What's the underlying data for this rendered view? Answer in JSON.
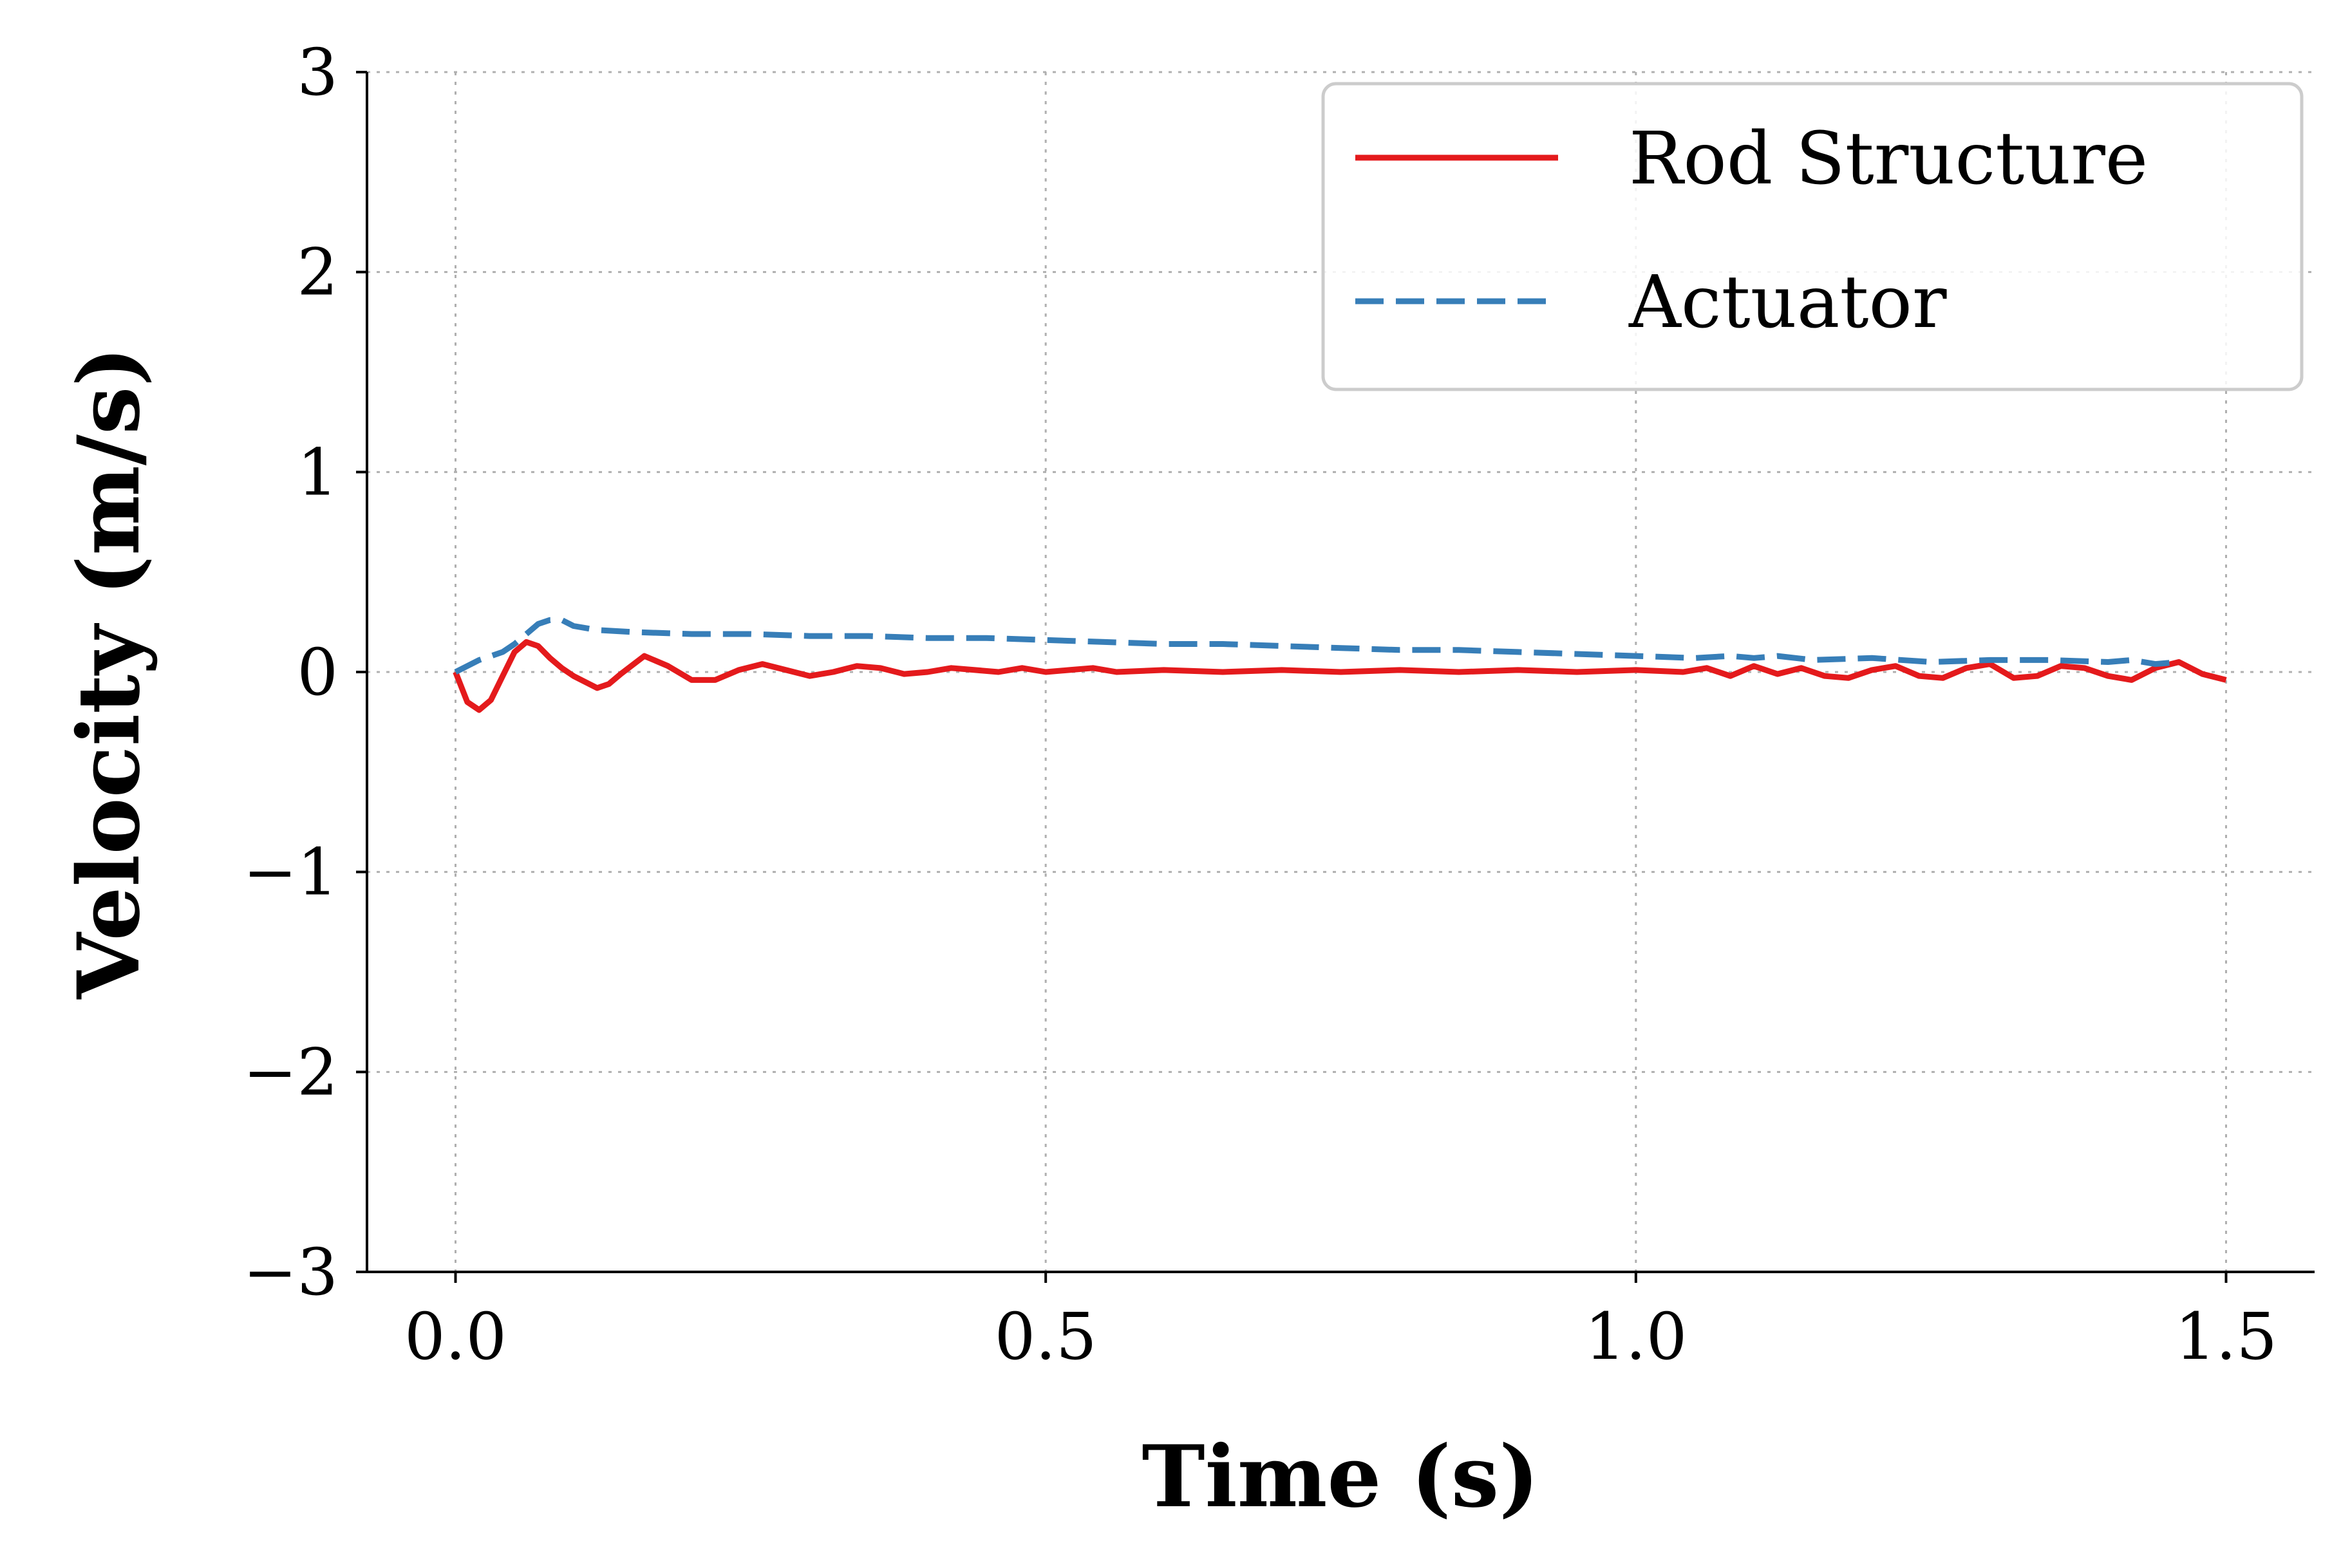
{
  "chart_data": {
    "type": "line",
    "xlabel": "Time (s)",
    "ylabel": "Velocity (m/s)",
    "xlim": [
      -0.075,
      1.575
    ],
    "ylim": [
      -3,
      3
    ],
    "xticks": [
      0.0,
      0.5,
      1.0,
      1.5
    ],
    "xtick_labels": [
      "0.0",
      "0.5",
      "1.0",
      "1.5"
    ],
    "yticks": [
      -3,
      -2,
      -1,
      0,
      1,
      2,
      3
    ],
    "ytick_labels": [
      "−3",
      "−2",
      "−1",
      "0",
      "1",
      "2",
      "3"
    ],
    "grid": true,
    "legend_position": "top-right",
    "series": [
      {
        "name": "Rod Structure",
        "color": "#e41a1c",
        "dash": "solid",
        "x": [
          0.0,
          0.01,
          0.02,
          0.03,
          0.04,
          0.05,
          0.06,
          0.07,
          0.08,
          0.09,
          0.1,
          0.12,
          0.13,
          0.14,
          0.16,
          0.18,
          0.2,
          0.22,
          0.24,
          0.26,
          0.28,
          0.3,
          0.32,
          0.34,
          0.36,
          0.38,
          0.4,
          0.42,
          0.44,
          0.46,
          0.48,
          0.5,
          0.52,
          0.54,
          0.56,
          0.6,
          0.65,
          0.7,
          0.75,
          0.8,
          0.85,
          0.9,
          0.95,
          1.0,
          1.04,
          1.06,
          1.08,
          1.1,
          1.12,
          1.14,
          1.16,
          1.18,
          1.2,
          1.22,
          1.24,
          1.26,
          1.28,
          1.3,
          1.32,
          1.34,
          1.36,
          1.38,
          1.4,
          1.42,
          1.44,
          1.46,
          1.48,
          1.5
        ],
        "y": [
          0.0,
          -0.15,
          -0.19,
          -0.14,
          -0.02,
          0.1,
          0.15,
          0.13,
          0.07,
          0.02,
          -0.02,
          -0.08,
          -0.06,
          -0.01,
          0.08,
          0.03,
          -0.04,
          -0.04,
          0.01,
          0.04,
          0.01,
          -0.02,
          0.0,
          0.03,
          0.02,
          -0.01,
          0.0,
          0.02,
          0.01,
          0.0,
          0.02,
          0.0,
          0.01,
          0.02,
          0.0,
          0.01,
          0.0,
          0.01,
          0.0,
          0.01,
          0.0,
          0.01,
          0.0,
          0.01,
          0.0,
          0.02,
          -0.02,
          0.03,
          -0.01,
          0.02,
          -0.02,
          -0.03,
          0.01,
          0.03,
          -0.02,
          -0.03,
          0.02,
          0.04,
          -0.03,
          -0.02,
          0.03,
          0.02,
          -0.02,
          -0.04,
          0.02,
          0.05,
          -0.01,
          -0.04
        ]
      },
      {
        "name": "Actuator",
        "color": "#377eb8",
        "dash": "dashed",
        "x": [
          0.0,
          0.02,
          0.04,
          0.05,
          0.06,
          0.07,
          0.08,
          0.09,
          0.1,
          0.12,
          0.15,
          0.2,
          0.25,
          0.3,
          0.35,
          0.4,
          0.45,
          0.5,
          0.55,
          0.6,
          0.65,
          0.7,
          0.75,
          0.8,
          0.85,
          0.9,
          0.95,
          1.0,
          1.05,
          1.08,
          1.1,
          1.12,
          1.15,
          1.2,
          1.25,
          1.3,
          1.35,
          1.4,
          1.42,
          1.44,
          1.46
        ],
        "y": [
          0.0,
          0.06,
          0.1,
          0.14,
          0.19,
          0.24,
          0.26,
          0.26,
          0.23,
          0.21,
          0.2,
          0.19,
          0.19,
          0.18,
          0.18,
          0.17,
          0.17,
          0.16,
          0.15,
          0.14,
          0.14,
          0.13,
          0.12,
          0.11,
          0.11,
          0.1,
          0.09,
          0.08,
          0.07,
          0.08,
          0.07,
          0.08,
          0.06,
          0.07,
          0.05,
          0.06,
          0.06,
          0.05,
          0.06,
          0.04,
          0.05
        ]
      }
    ]
  }
}
